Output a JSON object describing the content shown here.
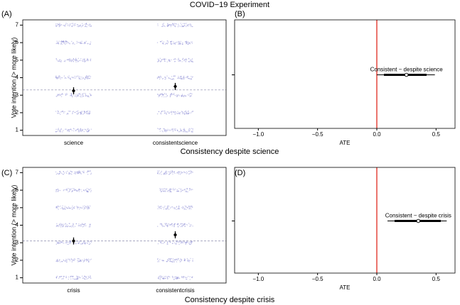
{
  "title": "COVID−19 Experiment",
  "chart_data": [
    {
      "type": "dot-error",
      "label": "(A)",
      "ylabel": "Vote intention (> more likely)",
      "categories": [
        "science",
        "consistentscience"
      ],
      "values": [
        3.25,
        3.5
      ],
      "errors": [
        0.2,
        0.2
      ],
      "reference_line": 3.3,
      "ylim": [
        0.7,
        7.3
      ],
      "yticks": [
        1,
        2,
        3,
        4,
        5,
        6,
        7
      ],
      "point_color": "#8080d0"
    },
    {
      "type": "coef",
      "label": "(B)",
      "xlabel": "ATE",
      "caption": "Consistency despite science",
      "estimate_label": "Consistent − despite science",
      "estimate": 0.25,
      "ci_inner": [
        0.06,
        0.42
      ],
      "ci_outer": [
        0.0,
        0.49
      ],
      "reference_line": 0,
      "reference_color": "#e02a1f",
      "xlim": [
        -1.2,
        0.66
      ],
      "xticks": [
        {
          "value": -1,
          "label": "−1.0"
        },
        {
          "value": -0.5,
          "label": "−0.5"
        },
        {
          "value": 0,
          "label": "0.0"
        },
        0.5
      ]
    },
    {
      "type": "dot-error",
      "label": "(C)",
      "ylabel": "Vote intention (> more likely)",
      "categories": [
        "crisis",
        "consistentcrisis"
      ],
      "values": [
        3.1,
        3.45
      ],
      "errors": [
        0.2,
        0.2
      ],
      "reference_line": 3.1,
      "ylim": [
        0.7,
        7.3
      ],
      "yticks": [
        1,
        2,
        3,
        4,
        5,
        6,
        7
      ],
      "point_color": "#8080d0"
    },
    {
      "type": "coef",
      "label": "(D)",
      "xlabel": "ATE",
      "caption": "Consistency despite crisis",
      "estimate_label": "Consistent − despite crisis",
      "estimate": 0.35,
      "ci_inner": [
        0.15,
        0.54
      ],
      "ci_outer": [
        0.09,
        0.59
      ],
      "reference_line": 0,
      "reference_color": "#e02a1f",
      "xlim": [
        -1.2,
        0.66
      ],
      "xticks": [
        {
          "value": -1,
          "label": "−1.0"
        },
        {
          "value": -0.5,
          "label": "−0.5"
        },
        {
          "value": 0,
          "label": "0.0"
        },
        0.5
      ]
    }
  ]
}
